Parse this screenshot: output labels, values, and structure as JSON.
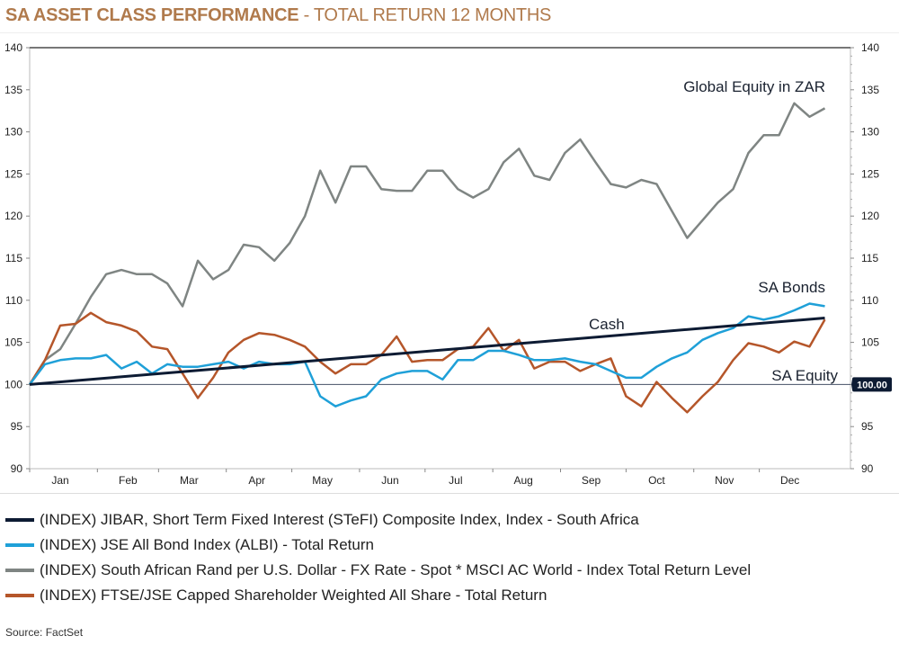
{
  "title": {
    "bold": "SA ASSET CLASS PERFORMANCE",
    "rest": " - TOTAL RETURN 12 MONTHS"
  },
  "source": "Source: FactSet",
  "colors": {
    "title": "#b07a4c",
    "cash": "#0d1b33",
    "bonds": "#1fa0d8",
    "global": "#7f8583",
    "equity": "#b5562a",
    "tag": "#0d1b33"
  },
  "chart_data": {
    "type": "line",
    "ylim": [
      90,
      140
    ],
    "yticks": [
      "90",
      "95",
      "100",
      "105",
      "110",
      "115",
      "120",
      "125",
      "130",
      "135",
      "140"
    ],
    "xticks": [
      "Jan",
      "Feb",
      "Mar",
      "Apr",
      "May",
      "Jun",
      "Jul",
      "Aug",
      "Sep",
      "Oct",
      "Nov",
      "Dec"
    ],
    "grid": false,
    "reference_line": {
      "value": 100,
      "label": "100.00"
    },
    "legend_position": "bottom",
    "x": [
      "Jan 01",
      "Jan 08",
      "Jan 15",
      "Jan 22",
      "Jan 29",
      "Feb 05",
      "Feb 12",
      "Feb 19",
      "Feb 26",
      "Mar 05",
      "Mar 12",
      "Mar 19",
      "Mar 26",
      "Apr 02",
      "Apr 09",
      "Apr 16",
      "Apr 23",
      "Apr 30",
      "May 07",
      "May 14",
      "May 21",
      "May 28",
      "Jun 04",
      "Jun 11",
      "Jun 18",
      "Jun 25",
      "Jul 02",
      "Jul 09",
      "Jul 16",
      "Jul 23",
      "Jul 30",
      "Aug 06",
      "Aug 13",
      "Aug 20",
      "Aug 27",
      "Sep 03",
      "Sep 10",
      "Sep 17",
      "Sep 24",
      "Oct 01",
      "Oct 08",
      "Oct 15",
      "Oct 22",
      "Oct 29",
      "Nov 05",
      "Nov 12",
      "Nov 19",
      "Nov 26",
      "Dec 03",
      "Dec 10",
      "Dec 17",
      "Dec 24",
      "Dec 31"
    ],
    "series": [
      {
        "key": "cash",
        "name": "(INDEX) JIBAR, Short Term Fixed Interest (STeFI) Composite Index, Index - South Africa",
        "annotation": "Cash",
        "x": [
          "Jan 01",
          "Dec 31"
        ],
        "values": [
          100,
          107.9
        ]
      },
      {
        "key": "bonds",
        "name": "(INDEX) JSE All Bond Index (ALBI) - Total Return",
        "annotation": "SA Bonds",
        "values": [
          100,
          102.4,
          102.9,
          103.1,
          103.1,
          103.5,
          101.9,
          102.7,
          101.3,
          102.4,
          102.1,
          102.1,
          102.4,
          102.7,
          101.9,
          102.7,
          102.4,
          102.4,
          102.7,
          98.6,
          97.4,
          98.1,
          98.6,
          100.6,
          101.3,
          101.6,
          101.6,
          100.6,
          102.9,
          102.9,
          104,
          104,
          103.5,
          102.9,
          102.9,
          103.1,
          102.7,
          102.4,
          101.6,
          100.8,
          100.8,
          102.1,
          103.1,
          103.8,
          105.3,
          106.1,
          106.7,
          108.1,
          107.7,
          108.1,
          108.8,
          109.6,
          109.3
        ]
      },
      {
        "key": "global",
        "name": "(INDEX) South African Rand per U.S. Dollar - FX Rate - Spot * MSCI AC World - Index Total Return Level",
        "annotation": "Global Equity in ZAR",
        "values": [
          100,
          102.9,
          104.2,
          107.2,
          110.4,
          113.1,
          113.6,
          113.1,
          113.1,
          112,
          109.3,
          114.7,
          112.5,
          113.6,
          116.6,
          116.3,
          114.7,
          116.8,
          120,
          125.4,
          121.6,
          125.9,
          125.9,
          123.2,
          123,
          123,
          125.4,
          125.4,
          123.2,
          122.2,
          123.2,
          126.4,
          128,
          124.8,
          124.3,
          127.5,
          129.1,
          126.4,
          123.8,
          123.4,
          124.3,
          123.8,
          120.6,
          117.4,
          119.5,
          121.6,
          123.2,
          127.5,
          129.6,
          129.6,
          133.4,
          131.8,
          132.8
        ]
      },
      {
        "key": "equity",
        "name": "(INDEX) FTSE/JSE Capped Shareholder Weighted All Share - Total Return",
        "annotation": "SA Equity",
        "values": [
          100,
          102.9,
          107,
          107.2,
          108.5,
          107.4,
          107,
          106.3,
          104.5,
          104.2,
          101.3,
          98.4,
          100.8,
          103.8,
          105.3,
          106.1,
          105.9,
          105.3,
          104.5,
          102.7,
          101.3,
          102.4,
          102.4,
          103.5,
          105.7,
          102.7,
          102.9,
          102.9,
          104.2,
          104.5,
          106.7,
          104,
          105.3,
          101.9,
          102.7,
          102.7,
          101.6,
          102.4,
          103.1,
          98.6,
          97.4,
          100.3,
          98.4,
          96.7,
          98.6,
          100.3,
          102.9,
          104.9,
          104.5,
          103.8,
          105.1,
          104.5,
          107.7
        ]
      }
    ],
    "legend_order": [
      "cash",
      "bonds",
      "global",
      "equity"
    ]
  }
}
